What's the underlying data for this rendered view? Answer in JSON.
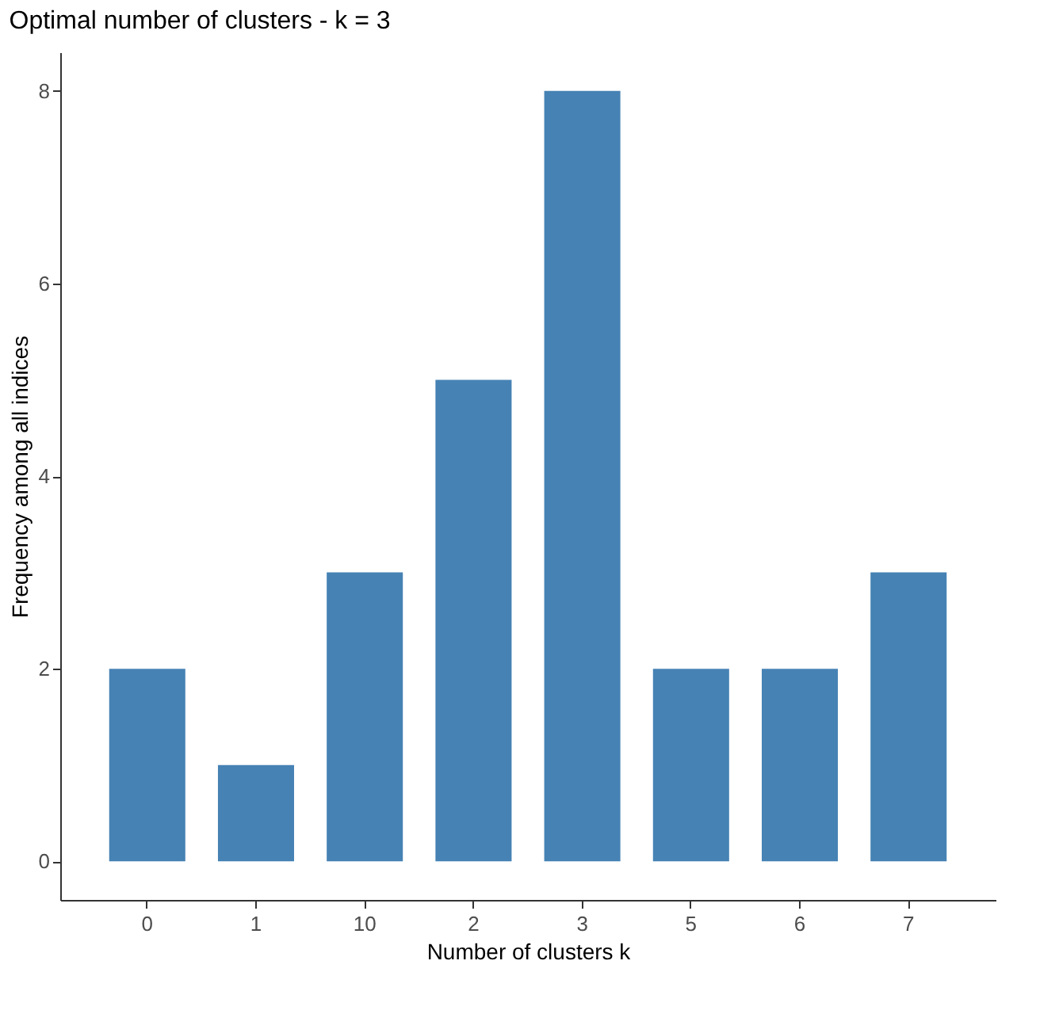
{
  "chart_data": {
    "type": "bar",
    "title": "Optimal number of clusters - k = 3",
    "xlabel": "Number of clusters k",
    "ylabel": "Frequency among all indices",
    "categories": [
      "0",
      "1",
      "10",
      "2",
      "3",
      "5",
      "6",
      "7"
    ],
    "values": [
      2,
      1,
      3,
      5,
      8,
      2,
      2,
      3
    ],
    "color": "#4682b4",
    "ylim": [
      -0.4,
      8.4
    ],
    "yticks": [
      0,
      2,
      4,
      6,
      8
    ],
    "grid": false
  }
}
